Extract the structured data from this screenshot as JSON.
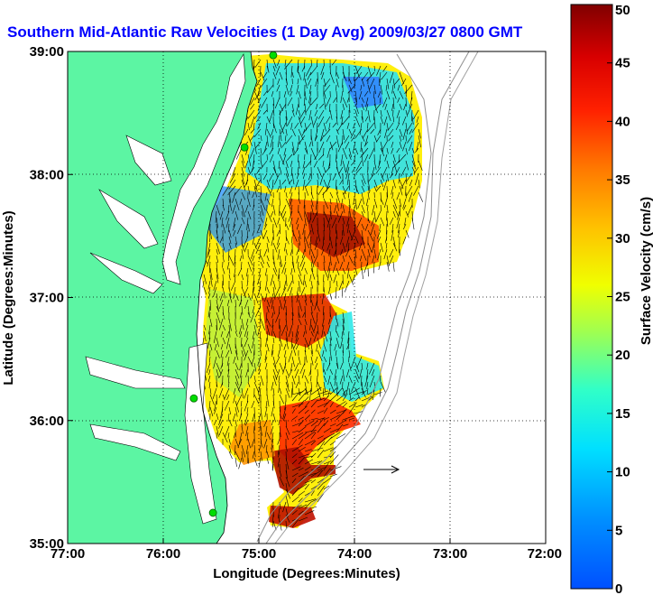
{
  "title": "Southern Mid-Atlantic Raw Velocities (1 Day Avg) 2009/03/27 0800 GMT",
  "xaxis": {
    "label": "Longitude (Degrees:Minutes)",
    "ticks": [
      {
        "value": -77,
        "label": "77:00"
      },
      {
        "value": -76,
        "label": "76:00"
      },
      {
        "value": -75,
        "label": "75:00"
      },
      {
        "value": -74,
        "label": "74:00"
      },
      {
        "value": -73,
        "label": "73:00"
      },
      {
        "value": -72,
        "label": "72:00"
      }
    ],
    "range": [
      -77,
      -72
    ]
  },
  "yaxis": {
    "label": "Latitude (Degrees:Minutes)",
    "ticks": [
      {
        "value": 35,
        "label": "35:00"
      },
      {
        "value": 36,
        "label": "36:00"
      },
      {
        "value": 37,
        "label": "37:00"
      },
      {
        "value": 38,
        "label": "38:00"
      },
      {
        "value": 39,
        "label": "39:00"
      }
    ],
    "range": [
      35,
      39
    ]
  },
  "colorbar": {
    "label": "Surface Velocity (cm/s)",
    "range": [
      0,
      50
    ],
    "ticks": [
      "0",
      "5",
      "10",
      "15",
      "20",
      "25",
      "30",
      "35",
      "40",
      "45",
      "50"
    ]
  },
  "colors": {
    "title": "#0000ff",
    "land": "#5cf5a3",
    "water": "#ffffff",
    "station": "#00dd00"
  },
  "stations": [
    {
      "lon": -74.85,
      "lat": 38.97
    },
    {
      "lon": -75.15,
      "lat": 38.22
    },
    {
      "lon": -75.68,
      "lat": 36.18
    },
    {
      "lon": -75.48,
      "lat": 35.25
    }
  ]
}
